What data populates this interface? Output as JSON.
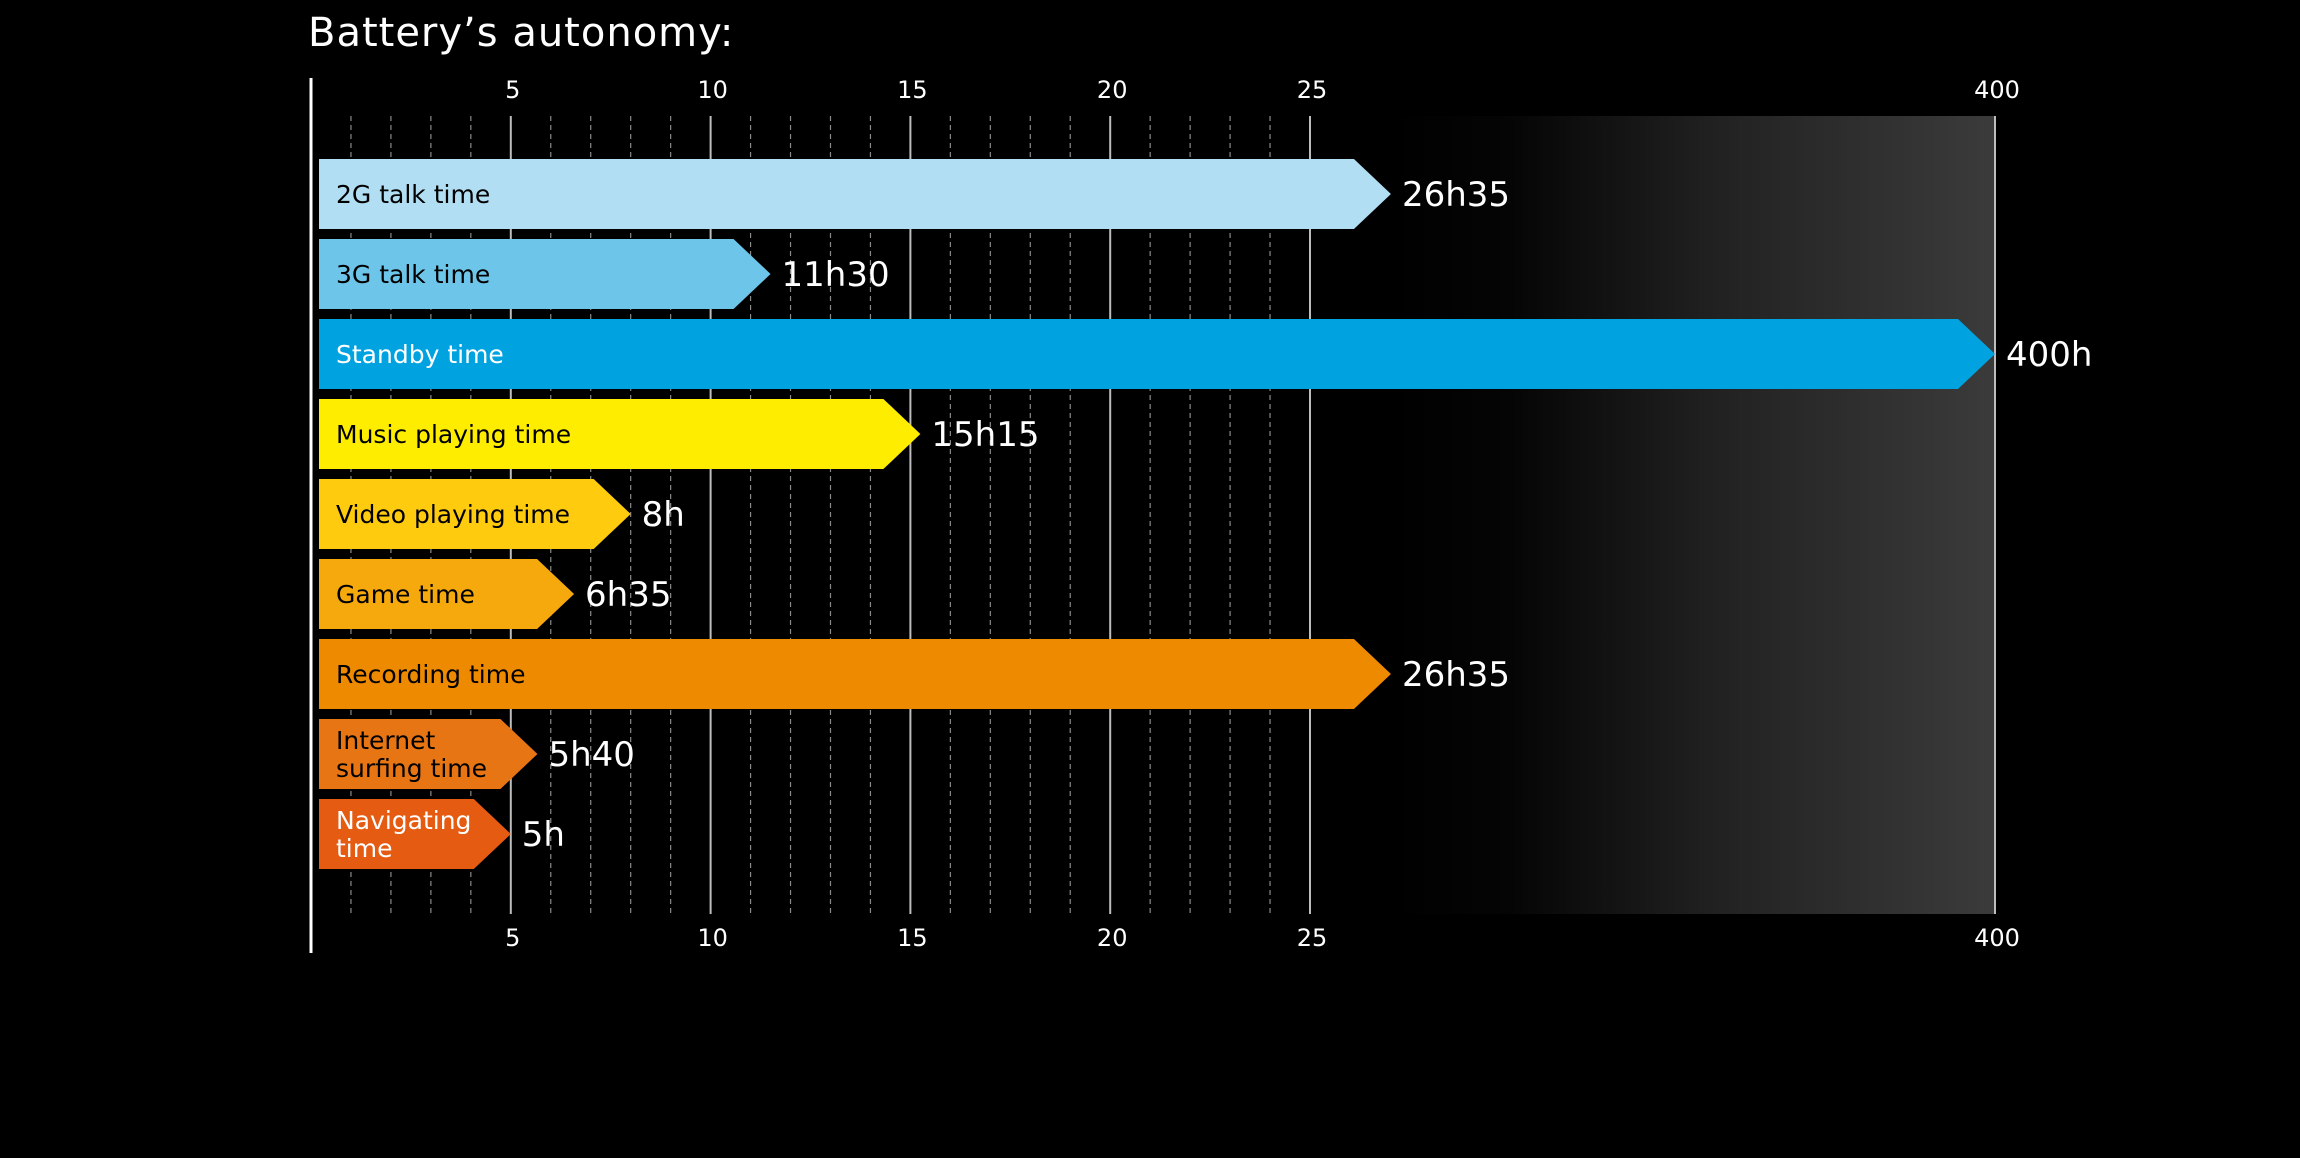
{
  "page": {
    "background": "#000000"
  },
  "chart_data": {
    "type": "bar",
    "orientation": "horizontal",
    "title": "Battery’s autonomy:",
    "xlabel": "",
    "ylabel": "",
    "axis": {
      "scale": "broken",
      "xlim": [
        0,
        400
      ],
      "segments": [
        {
          "range": [
            0,
            26
          ],
          "note": "linear"
        },
        {
          "range": [
            26,
            400
          ],
          "note": "compressed, gradient band"
        }
      ],
      "ticks": [
        {
          "value": 5,
          "label": "5"
        },
        {
          "value": 10,
          "label": "10"
        },
        {
          "value": 15,
          "label": "15"
        },
        {
          "value": 20,
          "label": "20"
        },
        {
          "value": 25,
          "label": "25"
        },
        {
          "value": 400,
          "label": "400"
        }
      ],
      "minor_tick_step": 1,
      "tick_labels_top": true,
      "tick_labels_bottom": true,
      "grid": true
    },
    "bars": [
      {
        "category": "2G talk time",
        "value": 26.583,
        "value_label": "26h35",
        "color": "#b1def3",
        "label_color": "#000000"
      },
      {
        "category": "3G talk time",
        "value": 11.5,
        "value_label": "11h30",
        "color": "#6dc6ea",
        "label_color": "#000000"
      },
      {
        "category": "Standby time",
        "value": 400,
        "value_label": "400h",
        "color": "#00a3e0",
        "label_color": "#ffffff"
      },
      {
        "category": "Music playing time",
        "value": 15.25,
        "value_label": "15h15",
        "color": "#ffed00",
        "label_color": "#000000"
      },
      {
        "category": "Video playing time",
        "value": 8,
        "value_label": "8h",
        "color": "#fecb0f",
        "label_color": "#000000"
      },
      {
        "category": "Game time",
        "value": 6.583,
        "value_label": "6h35",
        "color": "#f6a90d",
        "label_color": "#000000"
      },
      {
        "category": "Recording time",
        "value": 26.583,
        "value_label": "26h35",
        "color": "#ee8a00",
        "label_color": "#000000"
      },
      {
        "category": "Internet\nsurfing time",
        "value": 5.667,
        "value_label": "5h40",
        "color": "#e87514",
        "label_color": "#000000"
      },
      {
        "category": "Navigating\ntime",
        "value": 5,
        "value_label": "5h",
        "color": "#e65b12",
        "label_color": "#ffffff"
      }
    ]
  }
}
